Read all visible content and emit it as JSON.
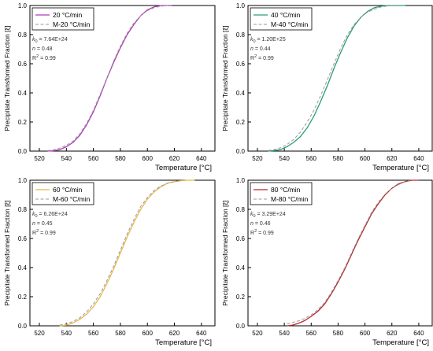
{
  "chart_data": [
    {
      "type": "line",
      "xlabel": "Temperature [°C]",
      "ylabel": "Precipitate Transformed Fraction [ξ]",
      "xlim": [
        513,
        650
      ],
      "ylim": [
        0,
        1
      ],
      "xticks": [
        "520",
        "540",
        "560",
        "580",
        "600",
        "620",
        "640"
      ],
      "yticks": [
        "0.0",
        "0.2",
        "0.4",
        "0.6",
        "0.8",
        "1.0"
      ],
      "legend_position": "top-left",
      "series": [
        {
          "name": "20 °C/min",
          "color": "#b23bb8",
          "style": "solid",
          "x": [
            526,
            530,
            535,
            540,
            545,
            550,
            555,
            560,
            565,
            570,
            575,
            580,
            585,
            590,
            595,
            600,
            605,
            610,
            615,
            618
          ],
          "y": [
            0.0,
            0.002,
            0.01,
            0.03,
            0.06,
            0.11,
            0.18,
            0.27,
            0.38,
            0.5,
            0.61,
            0.71,
            0.8,
            0.87,
            0.93,
            0.97,
            0.99,
            1.0,
            1.0,
            1.0
          ]
        },
        {
          "name": "M-20 °C/min",
          "color": "#9a9a9a",
          "style": "dashed",
          "x": [
            526,
            530,
            535,
            540,
            545,
            550,
            555,
            560,
            565,
            570,
            575,
            580,
            585,
            590,
            595,
            600,
            605,
            610,
            615
          ],
          "y": [
            0.003,
            0.008,
            0.02,
            0.04,
            0.07,
            0.12,
            0.19,
            0.28,
            0.39,
            0.5,
            0.62,
            0.72,
            0.81,
            0.88,
            0.93,
            0.965,
            0.985,
            0.995,
            1.0
          ]
        }
      ],
      "annotations": {
        "k0_label": "k",
        "k0_sub": "0",
        "k0_value": " = 7.64E+24",
        "n_label": "n",
        "n_value": " = 0.48",
        "r2_label": "R",
        "r2_sup": "2",
        "r2_value": " = 0.99"
      }
    },
    {
      "type": "line",
      "xlabel": "Temperature [°C]",
      "ylabel": "Precipitate Transformed Fraction [ξ]",
      "xlim": [
        513,
        650
      ],
      "ylim": [
        0,
        1
      ],
      "xticks": [
        "520",
        "540",
        "560",
        "580",
        "600",
        "620",
        "640"
      ],
      "yticks": [
        "0.0",
        "0.2",
        "0.4",
        "0.6",
        "0.8",
        "1.0"
      ],
      "legend_position": "top-left",
      "series": [
        {
          "name": "40 °C/min",
          "color": "#2a9d78",
          "style": "solid",
          "x": [
            528,
            532,
            537,
            542,
            547,
            552,
            557,
            562,
            567,
            572,
            577,
            582,
            587,
            592,
            597,
            602,
            607,
            612,
            617,
            622,
            627,
            630
          ],
          "y": [
            0.0,
            0.003,
            0.01,
            0.03,
            0.06,
            0.1,
            0.16,
            0.24,
            0.34,
            0.45,
            0.57,
            0.68,
            0.78,
            0.86,
            0.92,
            0.96,
            0.985,
            0.995,
            1.0,
            1.0,
            1.0,
            1.0
          ]
        },
        {
          "name": "M-40 °C/min",
          "color": "#9a9a9a",
          "style": "dashed",
          "x": [
            528,
            532,
            537,
            542,
            547,
            552,
            557,
            562,
            567,
            572,
            577,
            582,
            587,
            592,
            597,
            602,
            607,
            612,
            617,
            622
          ],
          "y": [
            0.004,
            0.01,
            0.022,
            0.045,
            0.08,
            0.13,
            0.2,
            0.28,
            0.38,
            0.49,
            0.6,
            0.71,
            0.8,
            0.87,
            0.92,
            0.955,
            0.975,
            0.99,
            0.997,
            1.0
          ]
        }
      ],
      "annotations": {
        "k0_label": "k",
        "k0_sub": "0",
        "k0_value": " = 1.20E+25",
        "n_label": "n",
        "n_value": " = 0.44",
        "r2_label": "R",
        "r2_sup": "2",
        "r2_value": " = 0.99"
      }
    },
    {
      "type": "line",
      "xlabel": "Temperature [°C]",
      "ylabel": "Precipitate Transformed Fraction [ξ]",
      "xlim": [
        513,
        650
      ],
      "ylim": [
        0,
        1
      ],
      "xticks": [
        "520",
        "540",
        "560",
        "580",
        "600",
        "620",
        "640"
      ],
      "yticks": [
        "0.0",
        "0.2",
        "0.4",
        "0.6",
        "0.8",
        "1.0"
      ],
      "legend_position": "top-left",
      "series": [
        {
          "name": "60 °C/min",
          "color": "#e8b84a",
          "style": "solid",
          "x": [
            535,
            540,
            545,
            550,
            555,
            560,
            565,
            570,
            575,
            580,
            585,
            590,
            595,
            600,
            605,
            610,
            615,
            620,
            625,
            630,
            635
          ],
          "y": [
            0.0,
            0.005,
            0.02,
            0.045,
            0.08,
            0.13,
            0.2,
            0.29,
            0.39,
            0.5,
            0.61,
            0.71,
            0.8,
            0.87,
            0.92,
            0.955,
            0.98,
            0.99,
            0.997,
            1.0,
            1.0
          ]
        },
        {
          "name": "M-60 °C/min",
          "color": "#9a9a9a",
          "style": "dashed",
          "x": [
            535,
            540,
            545,
            550,
            555,
            560,
            565,
            570,
            575,
            580,
            585,
            590,
            595,
            600,
            605,
            610,
            615,
            620,
            625
          ],
          "y": [
            0.005,
            0.012,
            0.03,
            0.055,
            0.095,
            0.15,
            0.22,
            0.31,
            0.41,
            0.52,
            0.63,
            0.73,
            0.82,
            0.88,
            0.93,
            0.96,
            0.98,
            0.99,
            1.0
          ]
        }
      ],
      "annotations": {
        "k0_label": "k",
        "k0_sub": "0",
        "k0_value": " = 6.26E+24",
        "n_label": "n",
        "n_value": " = 0.45",
        "r2_label": "R",
        "r2_sup": "2",
        "r2_value": " = 0.99"
      }
    },
    {
      "type": "line",
      "xlabel": "Temperature [°C]",
      "ylabel": "Precipitate Transformed Fraction [ξ]",
      "xlim": [
        513,
        650
      ],
      "ylim": [
        0,
        1
      ],
      "xticks": [
        "520",
        "540",
        "560",
        "580",
        "600",
        "620",
        "640"
      ],
      "yticks": [
        "0.0",
        "0.2",
        "0.4",
        "0.6",
        "0.8",
        "1.0"
      ],
      "legend_position": "top-left",
      "series": [
        {
          "name": "80 °C/min",
          "color": "#b52a2a",
          "style": "solid",
          "x": [
            542,
            546,
            550,
            555,
            560,
            565,
            570,
            575,
            580,
            585,
            590,
            595,
            600,
            605,
            610,
            615,
            620,
            625,
            630,
            635,
            640
          ],
          "y": [
            0.0,
            0.005,
            0.015,
            0.035,
            0.065,
            0.1,
            0.15,
            0.22,
            0.3,
            0.39,
            0.49,
            0.59,
            0.68,
            0.77,
            0.84,
            0.9,
            0.945,
            0.975,
            0.99,
            1.0,
            1.0
          ]
        },
        {
          "name": "M-80 °C/min",
          "color": "#9a9a9a",
          "style": "dashed",
          "x": [
            542,
            546,
            550,
            555,
            560,
            565,
            570,
            575,
            580,
            585,
            590,
            595,
            600,
            605,
            610,
            615,
            620,
            625,
            630,
            635
          ],
          "y": [
            0.015,
            0.022,
            0.032,
            0.05,
            0.075,
            0.11,
            0.16,
            0.23,
            0.31,
            0.4,
            0.5,
            0.6,
            0.69,
            0.78,
            0.85,
            0.905,
            0.945,
            0.97,
            0.99,
            1.0
          ]
        }
      ],
      "annotations": {
        "k0_label": "k",
        "k0_sub": "0",
        "k0_value": " = 3.29E+24",
        "n_label": "n",
        "n_value": " = 0.46",
        "r2_label": "R",
        "r2_sup": "2",
        "r2_value": " = 0.99"
      }
    }
  ]
}
